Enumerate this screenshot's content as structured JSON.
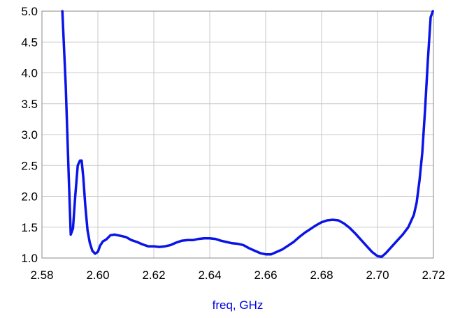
{
  "chart_data": {
    "type": "line",
    "title": "",
    "xlabel": "freq, GHz",
    "ylabel": "",
    "xlim": [
      2.58,
      2.72
    ],
    "ylim": [
      1.0,
      5.0
    ],
    "grid": true,
    "x_ticks": [
      "2.58",
      "2.60",
      "2.62",
      "2.64",
      "2.66",
      "2.68",
      "2.70",
      "2.72"
    ],
    "y_ticks": [
      "1.0",
      "1.5",
      "2.0",
      "2.5",
      "3.0",
      "3.5",
      "4.0",
      "4.5",
      "5.0"
    ],
    "colors": {
      "series": "#0a14e6",
      "xlabel": "#0000e0",
      "grid": "#c8c8c8"
    },
    "series": [
      {
        "x": [
          2.5873,
          2.5885,
          2.5896,
          2.5903,
          2.5911,
          2.5919,
          2.5928,
          2.5936,
          2.5942,
          2.5948,
          2.5955,
          2.5963,
          2.5971,
          2.598,
          2.599,
          2.6,
          2.6008,
          2.6018,
          2.603,
          2.6045,
          2.606,
          2.608,
          2.61,
          2.612,
          2.614,
          2.616,
          2.618,
          2.62,
          2.622,
          2.624,
          2.626,
          2.628,
          2.63,
          2.632,
          2.634,
          2.636,
          2.638,
          2.64,
          2.642,
          2.644,
          2.646,
          2.648,
          2.65,
          2.652,
          2.654,
          2.656,
          2.658,
          2.66,
          2.662,
          2.664,
          2.666,
          2.668,
          2.67,
          2.672,
          2.674,
          2.676,
          2.678,
          2.68,
          2.682,
          2.684,
          2.686,
          2.688,
          2.69,
          2.692,
          2.694,
          2.696,
          2.698,
          2.7,
          2.7015,
          2.703,
          2.705,
          2.707,
          2.709,
          2.711,
          2.713,
          2.714,
          2.715,
          2.716,
          2.717,
          2.718,
          2.719,
          2.7198
        ],
        "y": [
          5.0,
          3.8,
          2.3,
          1.38,
          1.48,
          2.0,
          2.5,
          2.58,
          2.58,
          2.3,
          1.85,
          1.45,
          1.25,
          1.12,
          1.07,
          1.1,
          1.2,
          1.27,
          1.3,
          1.37,
          1.38,
          1.36,
          1.34,
          1.29,
          1.26,
          1.22,
          1.19,
          1.19,
          1.18,
          1.19,
          1.21,
          1.25,
          1.28,
          1.29,
          1.29,
          1.31,
          1.32,
          1.32,
          1.31,
          1.28,
          1.26,
          1.24,
          1.23,
          1.21,
          1.16,
          1.12,
          1.08,
          1.06,
          1.06,
          1.1,
          1.14,
          1.2,
          1.26,
          1.34,
          1.41,
          1.47,
          1.53,
          1.58,
          1.61,
          1.62,
          1.61,
          1.56,
          1.49,
          1.4,
          1.3,
          1.2,
          1.1,
          1.03,
          1.02,
          1.08,
          1.18,
          1.28,
          1.38,
          1.5,
          1.7,
          1.9,
          2.25,
          2.7,
          3.4,
          4.2,
          4.9,
          5.0
        ]
      }
    ]
  }
}
